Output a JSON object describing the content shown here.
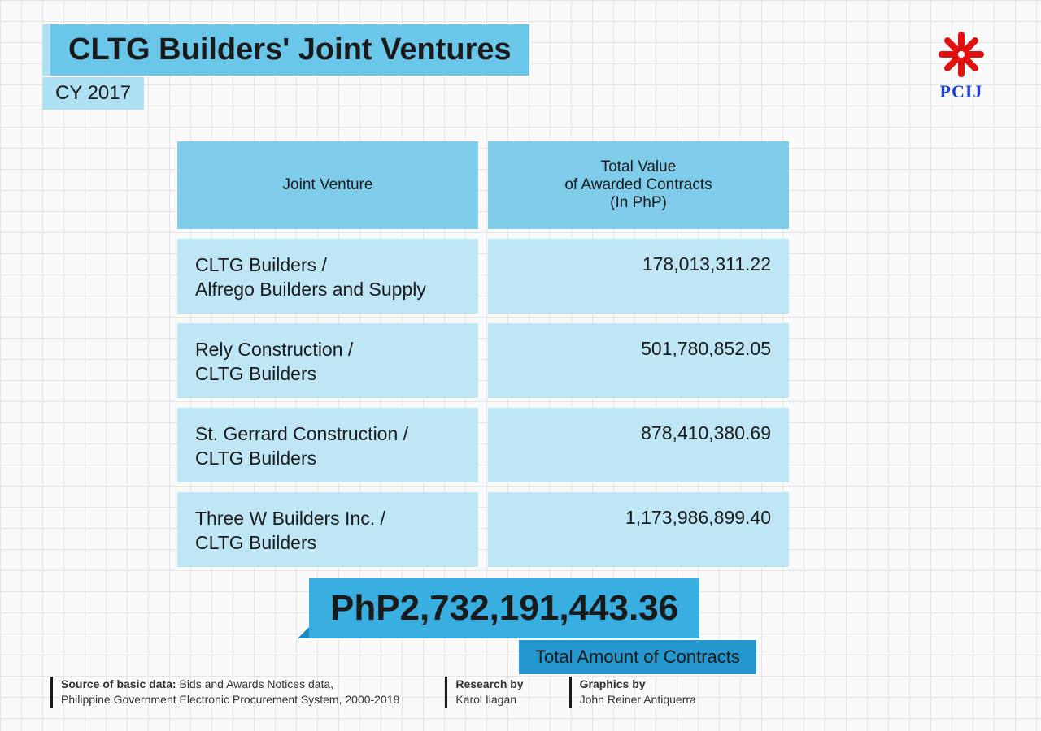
{
  "header": {
    "title": "CLTG Builders' Joint Ventures",
    "subtitle": "CY 2017"
  },
  "logo": {
    "text": "PCIJ",
    "petal_color": "#e31010",
    "text_color": "#1a3fd6",
    "petal_count": 8
  },
  "table": {
    "headers": {
      "left": "Joint Venture",
      "right": "Total Value\nof Awarded Contracts\n(In PhP)"
    },
    "rows": [
      {
        "venture": "CLTG Builders /\nAlfrego Builders and Supply",
        "value": "178,013,311.22"
      },
      {
        "venture": "Rely Construction /\nCLTG Builders",
        "value": "501,780,852.05"
      },
      {
        "venture": "St. Gerrard Construction /\nCLTG Builders",
        "value": "878,410,380.69"
      },
      {
        "venture": "Three W Builders Inc. /\nCLTG Builders",
        "value": "1,173,986,899.40"
      }
    ],
    "header_bg": "#7fcdeb",
    "cell_bg": "#bee6f5",
    "header_fontsize": 19,
    "cell_fontsize": 23
  },
  "total": {
    "amount": "PhP2,732,191,443.36",
    "label": "Total Amount of Contracts",
    "amount_bg": "#39aee0",
    "label_bg": "#2497cf"
  },
  "footer": {
    "source_label": "Source of basic data:",
    "source_text": " Bids and Awards Notices data,\nPhilippine Government Electronic Procurement System, 2000-2018",
    "research_label": "Research by",
    "research_text": "Karol Ilagan",
    "graphics_label": "Graphics by",
    "graphics_text": "John Reiner Antiquerra"
  },
  "colors": {
    "grid_line": "#e5e5e5",
    "background": "#fafafa",
    "title_bg": "#6ac7ea",
    "subtitle_bg": "#aee1f4",
    "text": "#1a1a1a"
  }
}
